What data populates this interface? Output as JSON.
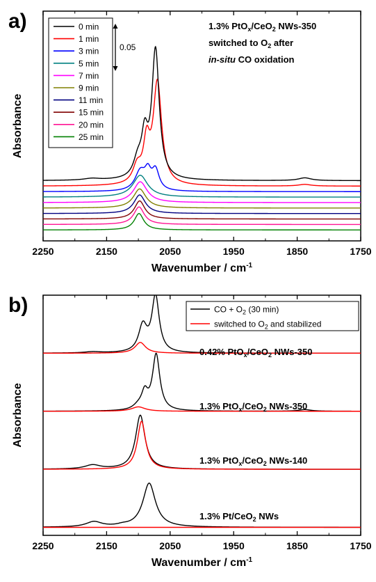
{
  "panels": [
    {
      "label": "a)",
      "xlabel": "Wavenumber / cm",
      "xlabel_sup": "-1",
      "ylabel": "Absorbance",
      "annotation": [
        [
          {
            "t": "1.3% PtO"
          },
          {
            "t": "x",
            "sub": true
          },
          {
            "t": "/CeO"
          },
          {
            "t": "2",
            "sub": true
          },
          {
            "t": " NWs-350"
          }
        ],
        [
          {
            "t": "switched to O"
          },
          {
            "t": "2",
            "sub": true
          },
          {
            "t": " after"
          }
        ],
        [
          {
            "t": "in-situ",
            "italic": true
          },
          {
            "t": " CO oxidation"
          }
        ]
      ],
      "scale_bar_label": "0.05"
    },
    {
      "label": "b)",
      "xlabel": "Wavenumber / cm",
      "xlabel_sup": "-1",
      "ylabel": "Absorbance",
      "sample_labels": [
        [
          {
            "t": "0.42% PtO"
          },
          {
            "t": "x",
            "sub": true
          },
          {
            "t": "/CeO"
          },
          {
            "t": "2",
            "sub": true
          },
          {
            "t": " NWs-350"
          }
        ],
        [
          {
            "t": "1.3% PtO"
          },
          {
            "t": "x",
            "sub": true
          },
          {
            "t": "/CeO"
          },
          {
            "t": "2",
            "sub": true
          },
          {
            "t": " NWs-350"
          }
        ],
        [
          {
            "t": "1.3% PtO"
          },
          {
            "t": "x",
            "sub": true
          },
          {
            "t": "/CeO"
          },
          {
            "t": "2",
            "sub": true
          },
          {
            "t": " NWs-140"
          }
        ],
        [
          {
            "t": "1.3% Pt/CeO"
          },
          {
            "t": "2",
            "sub": true
          },
          {
            "t": " NWs"
          }
        ]
      ]
    }
  ],
  "chart_data": [
    {
      "type": "line",
      "xlim": [
        2250,
        1750
      ],
      "xticks": [
        2250,
        2150,
        2050,
        1950,
        1850,
        1750
      ],
      "y_range": [
        -0.02,
        0.4
      ],
      "yticks_shown": false,
      "legend_position": "top-left",
      "series": [
        {
          "name": "0 min",
          "color": "#000000",
          "offset": 0.09,
          "peaks": [
            [
              2173,
              0.003,
              15
            ],
            [
              2101,
              0.03,
              8
            ],
            [
              2090,
              0.07,
              6
            ],
            [
              2073,
              0.235,
              7
            ],
            [
              1838,
              0.005,
              12
            ]
          ]
        },
        {
          "name": "1 min",
          "color": "#ff0000",
          "offset": 0.08,
          "peaks": [
            [
              2102,
              0.03,
              8
            ],
            [
              2087,
              0.07,
              6
            ],
            [
              2070,
              0.186,
              8
            ],
            [
              1838,
              0.003,
              12
            ]
          ]
        },
        {
          "name": "3 min",
          "color": "#0000ff",
          "offset": 0.07,
          "peaks": [
            [
              2097,
              0.035,
              10
            ],
            [
              2085,
              0.028,
              6
            ],
            [
              2073,
              0.036,
              7
            ]
          ]
        },
        {
          "name": "5 min",
          "color": "#008080",
          "offset": 0.06,
          "peaks": [
            [
              2097,
              0.04,
              14
            ]
          ]
        },
        {
          "name": "7 min",
          "color": "#ff00ff",
          "offset": 0.05,
          "peaks": [
            [
              2097,
              0.038,
              13
            ]
          ]
        },
        {
          "name": "9 min",
          "color": "#808000",
          "offset": 0.04,
          "peaks": [
            [
              2098,
              0.035,
              12
            ]
          ]
        },
        {
          "name": "11 min",
          "color": "#000080",
          "offset": 0.03,
          "peaks": [
            [
              2098,
              0.034,
              11
            ]
          ]
        },
        {
          "name": "15 min",
          "color": "#800000",
          "offset": 0.02,
          "peaks": [
            [
              2098,
              0.033,
              10
            ]
          ]
        },
        {
          "name": "20 min",
          "color": "#ff1493",
          "offset": 0.01,
          "peaks": [
            [
              2099,
              0.032,
              10
            ]
          ]
        },
        {
          "name": "25 min",
          "color": "#008000",
          "offset": 0.0,
          "peaks": [
            [
              2099,
              0.03,
              9
            ]
          ]
        }
      ]
    },
    {
      "type": "line",
      "xlim": [
        2250,
        1750
      ],
      "xticks": [
        2250,
        2150,
        2050,
        1950,
        1850,
        1750
      ],
      "y_range": [
        -0.02,
        0.58
      ],
      "yticks_shown": false,
      "legend_position": "top-right",
      "legend": [
        {
          "label": [
            {
              "t": "CO + O"
            },
            {
              "t": "2",
              "sub": true
            },
            {
              "t": " (30 min)"
            }
          ],
          "color": "#000000"
        },
        {
          "label": [
            {
              "t": "switched to O"
            },
            {
              "t": "2",
              "sub": true
            },
            {
              "t": " and stabilized"
            }
          ],
          "color": "#ff0000"
        }
      ],
      "groups": [
        {
          "offset": 0.435,
          "black": [
            [
              2172,
              0.003,
              15
            ],
            [
              2093,
              0.065,
              8
            ],
            [
              2073,
              0.14,
              7
            ]
          ],
          "red": [
            [
              2097,
              0.027,
              10
            ]
          ]
        },
        {
          "offset": 0.29,
          "black": [
            [
              2100,
              0.01,
              10
            ],
            [
              2090,
              0.04,
              6
            ],
            [
              2072,
              0.14,
              7
            ],
            [
              1838,
              0.004,
              12
            ]
          ],
          "red": [
            [
              2100,
              0.011,
              13
            ]
          ]
        },
        {
          "offset": 0.145,
          "black": [
            [
              2172,
              0.01,
              15
            ],
            [
              2097,
              0.135,
              9
            ]
          ],
          "red": [
            [
              2095,
              0.12,
              8
            ]
          ]
        },
        {
          "offset": 0.0,
          "black": [
            [
              2170,
              0.013,
              15
            ],
            [
              2125,
              0.003,
              10
            ],
            [
              2083,
              0.11,
              12
            ]
          ],
          "red": []
        }
      ]
    }
  ]
}
